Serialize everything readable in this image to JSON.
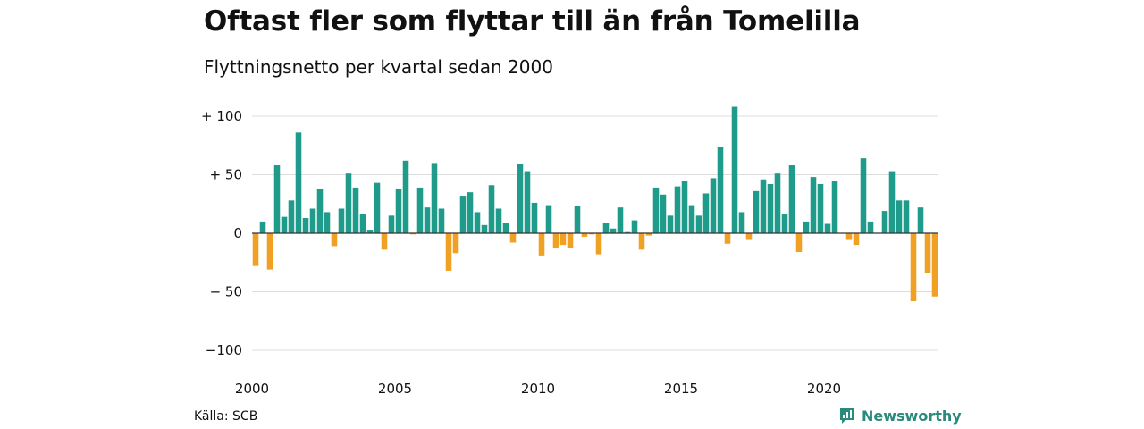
{
  "chart_data": {
    "type": "bar",
    "title": "Oftast fler som flyttar till än från Tomelilla",
    "subtitle": "Flyttningsnetto per kvartal sedan 2000",
    "x_start_year": 2000,
    "periods_per_year": 4,
    "x_ticks": [
      "2000",
      "2005",
      "2010",
      "2015",
      "2020"
    ],
    "y_ticks": [
      {
        "value": 100,
        "label": "+ 100"
      },
      {
        "value": 50,
        "label": "+  50"
      },
      {
        "value": 0,
        "label": "0"
      },
      {
        "value": -50,
        "label": "− 50"
      },
      {
        "value": -100,
        "label": "−100"
      }
    ],
    "ylim": [
      -100,
      100
    ],
    "grid": true,
    "values": [
      -28,
      10,
      -31,
      58,
      14,
      28,
      86,
      13,
      21,
      38,
      18,
      -11,
      21,
      51,
      39,
      16,
      3,
      43,
      -14,
      15,
      38,
      62,
      -1,
      39,
      22,
      60,
      21,
      -32,
      -17,
      32,
      35,
      18,
      7,
      41,
      21,
      9,
      -8,
      59,
      53,
      26,
      -19,
      24,
      -13,
      -10,
      -13,
      23,
      -3,
      -1,
      -18,
      9,
      4,
      22,
      1,
      11,
      -14,
      -2,
      39,
      33,
      15,
      40,
      45,
      24,
      15,
      34,
      47,
      74,
      -9,
      108,
      18,
      -5,
      36,
      46,
      42,
      51,
      16,
      58,
      -16,
      10,
      48,
      42,
      8,
      45,
      0,
      -5,
      -10,
      64,
      10,
      0,
      19,
      53,
      28,
      28,
      -58,
      22,
      -34,
      -54
    ],
    "colors": {
      "positive": "#1e9b8a",
      "negative": "#f0a022"
    }
  },
  "footer": {
    "source": "Källa: SCB",
    "brand": "Newsworthy",
    "brand_icon": "newsworthy-logo-icon"
  }
}
